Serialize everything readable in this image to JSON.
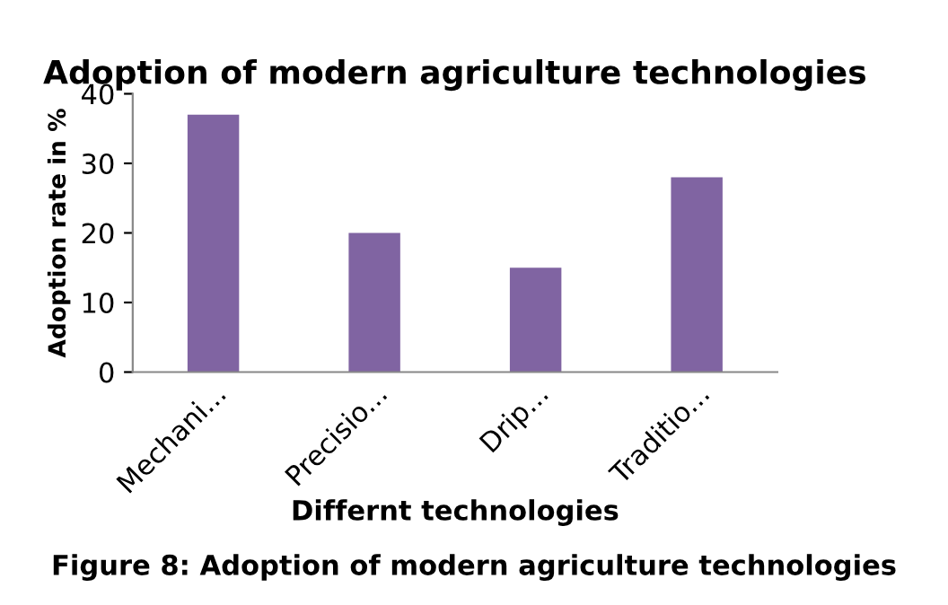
{
  "chart_data": {
    "type": "bar",
    "title": "Adoption of modern agriculture technologies",
    "xlabel": "Differnt technologies",
    "ylabel": "Adoption rate in %",
    "categories": [
      "Mechani...",
      "Precisio...",
      "Drip...",
      "Traditio..."
    ],
    "values": [
      37,
      20,
      15,
      28
    ],
    "color": "#8064a2",
    "ylim": [
      0,
      40
    ],
    "yticks": [
      0,
      10,
      20,
      30,
      40
    ],
    "grid": false,
    "legend": false,
    "annotations": [
      "Figure 8: Adoption of modern agriculture technologies"
    ]
  }
}
